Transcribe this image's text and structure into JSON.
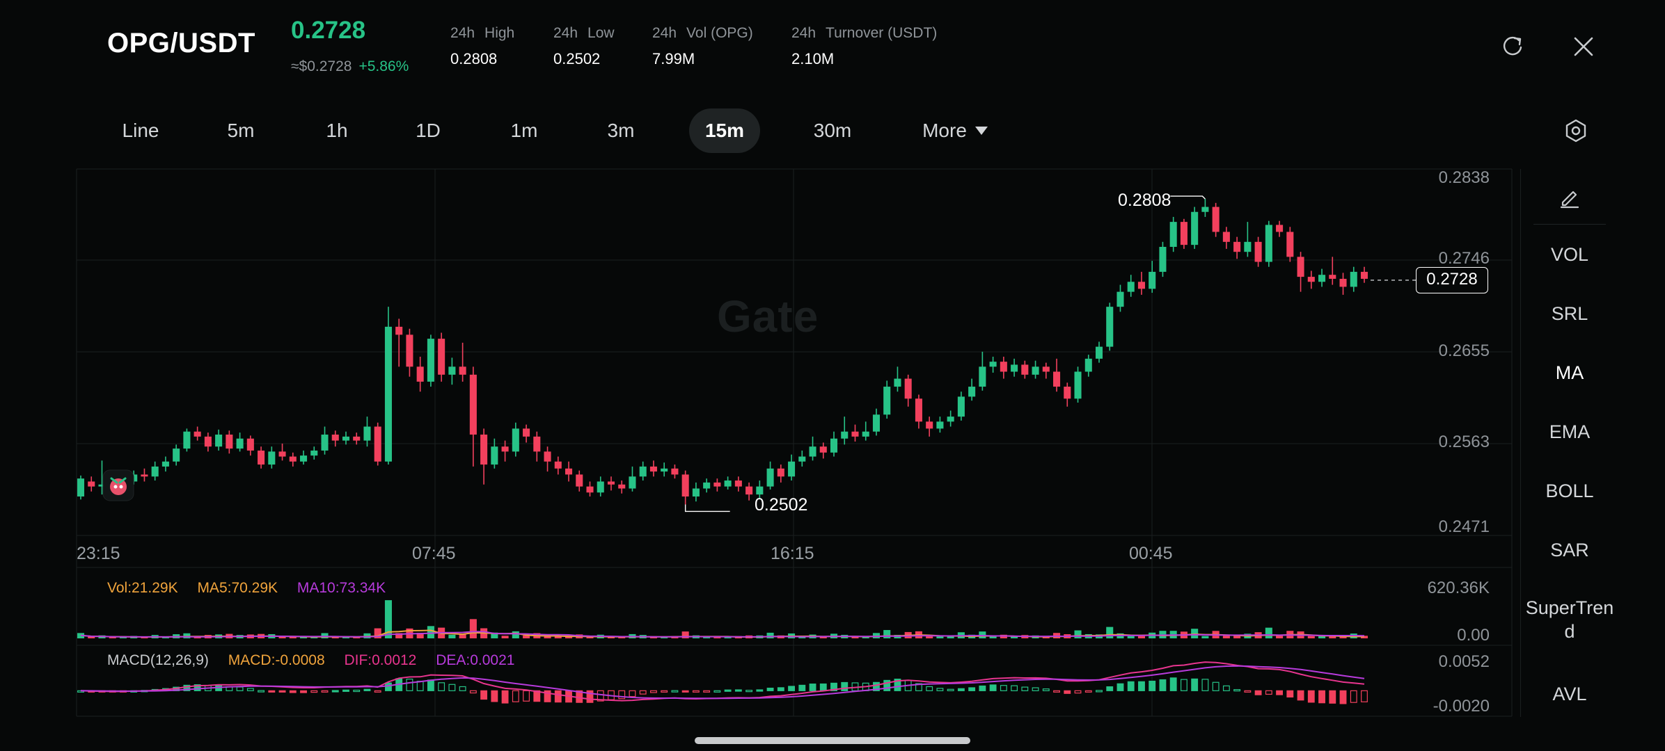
{
  "header": {
    "pair": "OPG/USDT",
    "price": "0.2728",
    "approx": "≈$0.2728",
    "change": "+5.86%",
    "stats": [
      {
        "label_a": "24h",
        "label_b": "High",
        "value": "0.2808"
      },
      {
        "label_a": "24h",
        "label_b": "Low",
        "value": "0.2502"
      },
      {
        "label_a": "24h",
        "label_b": "Vol (OPG)",
        "value": "7.99M"
      },
      {
        "label_a": "24h",
        "label_b": "Turnover (USDT)",
        "value": "2.10M"
      }
    ]
  },
  "tabs": [
    {
      "label": "Line"
    },
    {
      "label": "5m"
    },
    {
      "label": "1h"
    },
    {
      "label": "1D"
    },
    {
      "label": "1m"
    },
    {
      "label": "3m"
    },
    {
      "label": "15m",
      "active": true
    },
    {
      "label": "30m"
    },
    {
      "label": "More"
    }
  ],
  "side_indicators": [
    "VOL",
    "SRL",
    "MA",
    "EMA",
    "BOLL",
    "SAR",
    "SuperTrend",
    "AVL"
  ],
  "side_active": "MA",
  "watermark": "Gate",
  "colors": {
    "up": "#27c387",
    "down": "#f2405d",
    "ma5": "#f0a43c",
    "ma10": "#b73bdc",
    "dif": "#e8358f",
    "dea": "#b73bdc"
  },
  "icons": [
    "refresh-icon",
    "close-icon",
    "settings-icon",
    "pencil-icon",
    "caret-down-icon",
    "mascot-icon"
  ],
  "chart_data": {
    "type": "candlestick",
    "price_axis": {
      "ticks": [
        "0.2838",
        "0.2746",
        "0.2655",
        "0.2563",
        "0.2471"
      ],
      "ylim": [
        0.2471,
        0.2838
      ]
    },
    "time_axis": {
      "ticks": [
        "23:15",
        "07:45",
        "16:15",
        "00:45"
      ]
    },
    "high_label": "0.2808",
    "low_label": "0.2502",
    "current_price": "0.2728",
    "candles": [
      [
        0.251,
        0.2528,
        0.2531,
        0.2507
      ],
      [
        0.2525,
        0.252,
        0.253,
        0.2515
      ],
      [
        0.252,
        0.2522,
        0.2546,
        0.2512
      ],
      [
        0.2522,
        0.252,
        0.2531,
        0.2515
      ],
      [
        0.252,
        0.2525,
        0.2531,
        0.2515
      ],
      [
        0.2525,
        0.2532,
        0.2536,
        0.2522
      ],
      [
        0.2532,
        0.253,
        0.2538,
        0.2525
      ],
      [
        0.253,
        0.254,
        0.2545,
        0.2526
      ],
      [
        0.254,
        0.2545,
        0.255,
        0.2535
      ],
      [
        0.2545,
        0.2558,
        0.2562,
        0.2541
      ],
      [
        0.2558,
        0.2575,
        0.2578,
        0.2555
      ],
      [
        0.2575,
        0.257,
        0.258,
        0.2566
      ],
      [
        0.257,
        0.256,
        0.2574,
        0.2555
      ],
      [
        0.256,
        0.2572,
        0.2577,
        0.2556
      ],
      [
        0.2572,
        0.2558,
        0.2576,
        0.2553
      ],
      [
        0.2558,
        0.2568,
        0.2574,
        0.2555
      ],
      [
        0.2568,
        0.2556,
        0.2571,
        0.2551
      ],
      [
        0.2556,
        0.2542,
        0.256,
        0.2538
      ],
      [
        0.2542,
        0.2555,
        0.256,
        0.2538
      ],
      [
        0.2555,
        0.255,
        0.2563,
        0.2546
      ],
      [
        0.255,
        0.2545,
        0.2554,
        0.254
      ],
      [
        0.2545,
        0.2551,
        0.2556,
        0.2542
      ],
      [
        0.2551,
        0.2556,
        0.256,
        0.2547
      ],
      [
        0.2556,
        0.2572,
        0.258,
        0.2552
      ],
      [
        0.2572,
        0.2566,
        0.2576,
        0.256
      ],
      [
        0.2566,
        0.257,
        0.2575,
        0.2562
      ],
      [
        0.257,
        0.2566,
        0.2574,
        0.2562
      ],
      [
        0.2566,
        0.258,
        0.259,
        0.256
      ],
      [
        0.258,
        0.2545,
        0.2584,
        0.2541
      ],
      [
        0.2545,
        0.268,
        0.27,
        0.2542
      ],
      [
        0.268,
        0.2672,
        0.2688,
        0.264
      ],
      [
        0.2672,
        0.264,
        0.2678,
        0.263
      ],
      [
        0.264,
        0.2625,
        0.265,
        0.2615
      ],
      [
        0.2625,
        0.2668,
        0.2672,
        0.262
      ],
      [
        0.2668,
        0.2632,
        0.2674,
        0.2625
      ],
      [
        0.2632,
        0.264,
        0.2649,
        0.2622
      ],
      [
        0.264,
        0.2632,
        0.2664,
        0.2625
      ],
      [
        0.2632,
        0.2572,
        0.264,
        0.254
      ],
      [
        0.2572,
        0.2542,
        0.2578,
        0.2522
      ],
      [
        0.2542,
        0.256,
        0.2568,
        0.2538
      ],
      [
        0.256,
        0.2555,
        0.2566,
        0.2545
      ],
      [
        0.2555,
        0.2578,
        0.2584,
        0.255
      ],
      [
        0.2578,
        0.257,
        0.2582,
        0.2564
      ],
      [
        0.257,
        0.2555,
        0.2575,
        0.2545
      ],
      [
        0.2555,
        0.2545,
        0.256,
        0.2535
      ],
      [
        0.2545,
        0.2538,
        0.255,
        0.2532
      ],
      [
        0.2538,
        0.2532,
        0.2545,
        0.2525
      ],
      [
        0.2532,
        0.252,
        0.2536,
        0.2515
      ],
      [
        0.252,
        0.2514,
        0.2525,
        0.251
      ],
      [
        0.2514,
        0.2525,
        0.253,
        0.251
      ],
      [
        0.2525,
        0.2522,
        0.253,
        0.2516
      ],
      [
        0.2522,
        0.2518,
        0.2526,
        0.2513
      ],
      [
        0.2518,
        0.253,
        0.254,
        0.2515
      ],
      [
        0.253,
        0.254,
        0.2545,
        0.2526
      ],
      [
        0.254,
        0.2535,
        0.2546,
        0.253
      ],
      [
        0.2535,
        0.2538,
        0.2544,
        0.253
      ],
      [
        0.2538,
        0.2532,
        0.2542,
        0.2528
      ],
      [
        0.2532,
        0.251,
        0.2536,
        0.2502
      ],
      [
        0.251,
        0.2518,
        0.2524,
        0.2505
      ],
      [
        0.2518,
        0.2524,
        0.2528,
        0.2514
      ],
      [
        0.2524,
        0.252,
        0.2528,
        0.2515
      ],
      [
        0.252,
        0.2526,
        0.253,
        0.2517
      ],
      [
        0.2526,
        0.252,
        0.253,
        0.2515
      ],
      [
        0.252,
        0.2512,
        0.2524,
        0.2506
      ],
      [
        0.2512,
        0.252,
        0.2526,
        0.2508
      ],
      [
        0.252,
        0.2538,
        0.2545,
        0.2517
      ],
      [
        0.2538,
        0.253,
        0.2542,
        0.2524
      ],
      [
        0.253,
        0.2545,
        0.2552,
        0.2526
      ],
      [
        0.2545,
        0.255,
        0.2556,
        0.254
      ],
      [
        0.255,
        0.256,
        0.257,
        0.2546
      ],
      [
        0.256,
        0.2554,
        0.2564,
        0.2548
      ],
      [
        0.2554,
        0.2568,
        0.2575,
        0.255
      ],
      [
        0.2568,
        0.2575,
        0.259,
        0.2562
      ],
      [
        0.2575,
        0.257,
        0.2582,
        0.2565
      ],
      [
        0.257,
        0.2575,
        0.2585,
        0.2566
      ],
      [
        0.2575,
        0.2592,
        0.2598,
        0.2571
      ],
      [
        0.2592,
        0.262,
        0.2626,
        0.2588
      ],
      [
        0.262,
        0.2628,
        0.264,
        0.2615
      ],
      [
        0.2628,
        0.2608,
        0.2632,
        0.26
      ],
      [
        0.2608,
        0.2585,
        0.2612,
        0.2578
      ],
      [
        0.2585,
        0.2578,
        0.259,
        0.257
      ],
      [
        0.2578,
        0.2585,
        0.259,
        0.2574
      ],
      [
        0.2585,
        0.259,
        0.2596,
        0.258
      ],
      [
        0.259,
        0.261,
        0.2615,
        0.2586
      ],
      [
        0.261,
        0.262,
        0.2628,
        0.2606
      ],
      [
        0.262,
        0.264,
        0.2655,
        0.2616
      ],
      [
        0.264,
        0.2645,
        0.265,
        0.2634
      ],
      [
        0.2645,
        0.2635,
        0.265,
        0.2628
      ],
      [
        0.2635,
        0.2642,
        0.2648,
        0.263
      ],
      [
        0.2642,
        0.2632,
        0.2646,
        0.2628
      ],
      [
        0.2632,
        0.264,
        0.2646,
        0.2628
      ],
      [
        0.264,
        0.2635,
        0.2644,
        0.2628
      ],
      [
        0.2635,
        0.262,
        0.2648,
        0.2615
      ],
      [
        0.262,
        0.2608,
        0.2624,
        0.26
      ],
      [
        0.2608,
        0.2635,
        0.264,
        0.2604
      ],
      [
        0.2635,
        0.2648,
        0.2652,
        0.263
      ],
      [
        0.2648,
        0.266,
        0.2665,
        0.2644
      ],
      [
        0.266,
        0.27,
        0.2704,
        0.2656
      ],
      [
        0.27,
        0.2715,
        0.2722,
        0.2695
      ],
      [
        0.2715,
        0.2725,
        0.2732,
        0.271
      ],
      [
        0.2725,
        0.2718,
        0.2735,
        0.2712
      ],
      [
        0.2718,
        0.2735,
        0.2746,
        0.2714
      ],
      [
        0.2735,
        0.276,
        0.2765,
        0.273
      ],
      [
        0.276,
        0.2785,
        0.279,
        0.2755
      ],
      [
        0.2785,
        0.2762,
        0.2788,
        0.2758
      ],
      [
        0.2762,
        0.2795,
        0.28,
        0.2758
      ],
      [
        0.2795,
        0.28,
        0.2808,
        0.279
      ],
      [
        0.28,
        0.2775,
        0.2804,
        0.277
      ],
      [
        0.2775,
        0.2765,
        0.278,
        0.2758
      ],
      [
        0.2765,
        0.2755,
        0.277,
        0.2748
      ],
      [
        0.2755,
        0.2765,
        0.2785,
        0.275
      ],
      [
        0.2765,
        0.2745,
        0.277,
        0.274
      ],
      [
        0.2745,
        0.2782,
        0.2786,
        0.274
      ],
      [
        0.2782,
        0.2775,
        0.2786,
        0.277
      ],
      [
        0.2775,
        0.275,
        0.278,
        0.2745
      ],
      [
        0.275,
        0.273,
        0.2755,
        0.2715
      ],
      [
        0.273,
        0.2725,
        0.2736,
        0.2718
      ],
      [
        0.2725,
        0.2732,
        0.2738,
        0.272
      ],
      [
        0.2732,
        0.2728,
        0.275,
        0.2722
      ],
      [
        0.2728,
        0.272,
        0.2734,
        0.2712
      ],
      [
        0.272,
        0.2735,
        0.274,
        0.2715
      ],
      [
        0.2735,
        0.2728,
        0.274,
        0.2724
      ]
    ],
    "volume_pane": {
      "legend": {
        "vol": "Vol:21.29K",
        "ma5": "MA5:70.29K",
        "ma10": "MA10:73.34K"
      },
      "axis": [
        "620.36K",
        "0.00"
      ],
      "ylim": [
        0,
        620.36
      ]
    },
    "macd_pane": {
      "legend": {
        "name": "MACD(12,26,9)",
        "macd": "MACD:-0.0008",
        "dif": "DIF:0.0012",
        "dea": "DEA:0.0021"
      },
      "axis": [
        "0.0052",
        "-0.0020"
      ],
      "ylim": [
        -0.002,
        0.0052
      ]
    }
  }
}
